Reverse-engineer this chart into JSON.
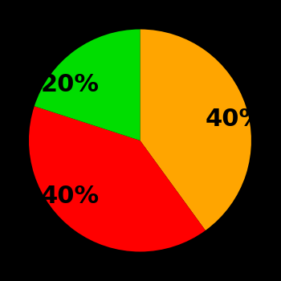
{
  "slices": [
    40,
    40,
    20
  ],
  "labels": [
    "40%",
    "40%",
    "20%"
  ],
  "colors": [
    "#FFA500",
    "#FF0000",
    "#00DD00"
  ],
  "startangle": 90,
  "background_color": "#000000",
  "label_fontsize": 22,
  "label_fontweight": "bold",
  "label_color": "#000000",
  "labeldistance": 0.62,
  "figsize": [
    3.5,
    3.5
  ],
  "dpi": 100
}
